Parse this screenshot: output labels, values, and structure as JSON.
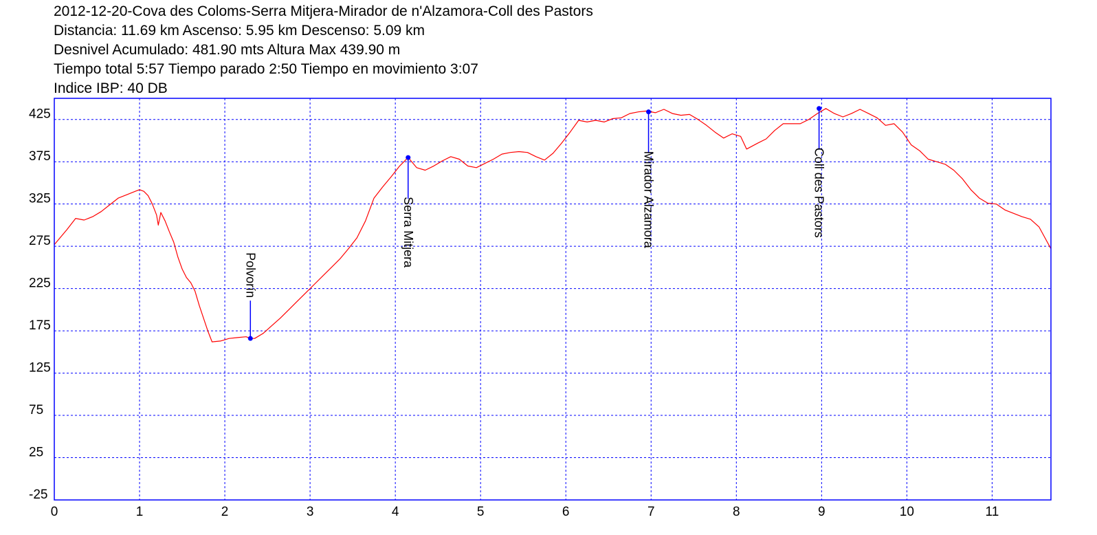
{
  "header": {
    "title": "2012-12-20-Cova des Coloms-Serra Mitjera-Mirador de n'Alzamora-Coll des Pastors",
    "line2": "Distancia: 11.69 km Ascenso: 5.95 km Descenso: 5.09 km",
    "line3": "Desnivel Acumulado: 481.90 mts  Altura Max 439.90 m",
    "line4": "Tiempo total 5:57 Tiempo parado 2:50 Tiempo en movimiento 3:07",
    "line5": "Indice IBP: 40 DB"
  },
  "colors": {
    "profile": "#ff0000",
    "frame": "#0000ff",
    "grid": "#0000ff",
    "waypoint": "#0000ff",
    "background": "#ffffff"
  },
  "chart_data": {
    "type": "line",
    "title": "2012-12-20-Cova des Coloms-Serra Mitjera-Mirador de n'Alzamora-Coll des Pastors",
    "xlabel": "",
    "ylabel": "",
    "xlim": [
      0,
      11.69
    ],
    "ylim": [
      -25,
      450
    ],
    "xticks": [
      0,
      1,
      2,
      3,
      4,
      5,
      6,
      7,
      8,
      9,
      10,
      11
    ],
    "yticks": [
      -25,
      25,
      75,
      125,
      175,
      225,
      275,
      325,
      375,
      425
    ],
    "grid": true,
    "series": [
      {
        "x": [
          0,
          0.15,
          0.25,
          0.35,
          0.45,
          0.55,
          0.65,
          0.75,
          0.85,
          0.95,
          1.0,
          1.05,
          1.1,
          1.15,
          1.2,
          1.22,
          1.25,
          1.3,
          1.35,
          1.4,
          1.45,
          1.5,
          1.55,
          1.6,
          1.65,
          1.7,
          1.75,
          1.8,
          1.85,
          1.95,
          2.05,
          2.15,
          2.25,
          2.3,
          2.35,
          2.45,
          2.55,
          2.65,
          2.75,
          2.85,
          2.95,
          3.05,
          3.15,
          3.25,
          3.35,
          3.45,
          3.55,
          3.65,
          3.75,
          3.85,
          3.95,
          4.05,
          4.15,
          4.25,
          4.35,
          4.45,
          4.55,
          4.65,
          4.75,
          4.85,
          4.95,
          5.05,
          5.15,
          5.25,
          5.35,
          5.45,
          5.55,
          5.65,
          5.75,
          5.85,
          5.95,
          6.05,
          6.15,
          6.25,
          6.35,
          6.45,
          6.55,
          6.65,
          6.75,
          6.85,
          6.95,
          7.05,
          7.15,
          7.25,
          7.35,
          7.45,
          7.55,
          7.65,
          7.75,
          7.85,
          7.95,
          8.05,
          8.12,
          8.25,
          8.35,
          8.45,
          8.55,
          8.65,
          8.75,
          8.85,
          8.95,
          9.05,
          9.15,
          9.25,
          9.35,
          9.45,
          9.55,
          9.65,
          9.75,
          9.85,
          9.95,
          10.05,
          10.15,
          10.25,
          10.35,
          10.45,
          10.55,
          10.65,
          10.75,
          10.85,
          10.95,
          11.05,
          11.15,
          11.25,
          11.35,
          11.45,
          11.55,
          11.69
        ],
        "values": [
          277,
          295,
          308,
          306,
          310,
          316,
          324,
          332,
          336,
          340,
          342,
          340,
          335,
          325,
          312,
          300,
          315,
          305,
          292,
          280,
          262,
          248,
          238,
          232,
          222,
          205,
          190,
          175,
          162,
          163,
          166,
          167,
          168,
          166,
          166,
          172,
          181,
          190,
          200,
          210,
          220,
          230,
          240,
          250,
          260,
          272,
          285,
          305,
          332,
          345,
          357,
          370,
          380,
          368,
          365,
          370,
          376,
          381,
          378,
          370,
          368,
          373,
          378,
          384,
          386,
          387,
          386,
          381,
          377,
          385,
          397,
          410,
          424,
          422,
          424,
          422,
          426,
          427,
          432,
          434,
          435,
          433,
          437,
          432,
          430,
          431,
          425,
          418,
          410,
          403,
          408,
          405,
          390,
          397,
          402,
          412,
          420,
          420,
          420,
          425,
          432,
          438,
          432,
          428,
          432,
          437,
          432,
          427,
          418,
          420,
          410,
          395,
          388,
          378,
          375,
          372,
          365,
          355,
          342,
          332,
          326,
          325,
          318,
          314,
          310,
          307,
          298,
          272
        ]
      }
    ],
    "waypoints": [
      {
        "label": "Polvorín",
        "x": 2.3,
        "y": 166
      },
      {
        "label": "Serra Mitjera",
        "x": 4.15,
        "y": 380
      },
      {
        "label": "Mirador Alzamora",
        "x": 6.97,
        "y": 434
      },
      {
        "label": "Coll des Pastors",
        "x": 8.97,
        "y": 438
      }
    ]
  }
}
